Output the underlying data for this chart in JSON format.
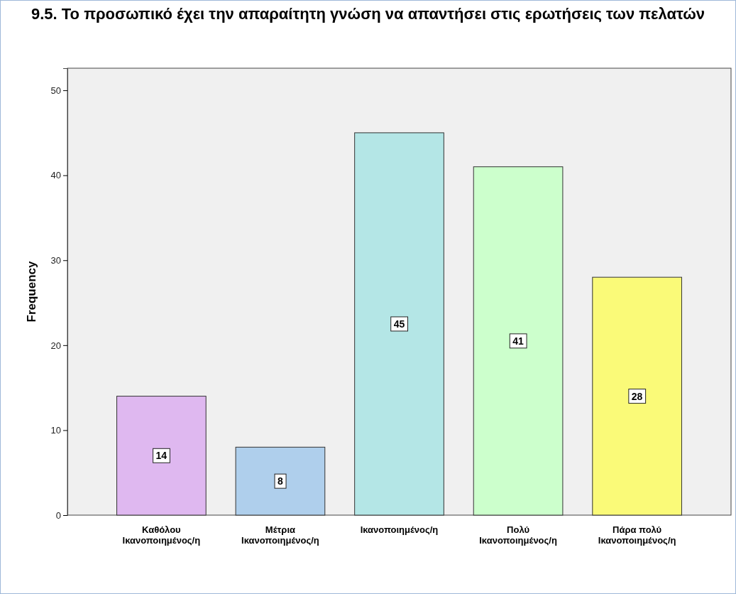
{
  "chart_data": {
    "type": "bar",
    "title": "9.5. Το προσωπικό έχει την απαραίτητη γνώση να απαντήσει στις ερωτήσεις των πελατών",
    "ylabel": "Frequency",
    "categories": [
      "Καθόλου\nΙκανοποιημένος/η",
      "Μέτρια\nΙκανοποιημένος/η",
      "Ικανοποιημένος/η",
      "Πολύ\nΙκανοποιημένος/η",
      "Πάρα πολύ\nΙκανοποιημένος/η"
    ],
    "values": [
      14,
      8,
      45,
      41,
      28
    ],
    "colors": [
      "#dfb8f0",
      "#afcfec",
      "#b4e6e6",
      "#ccffcc",
      "#fafa78"
    ],
    "ylim": [
      0,
      52.6
    ],
    "yticks": [
      0,
      10,
      20,
      30,
      40,
      50
    ],
    "data_labels": true
  }
}
